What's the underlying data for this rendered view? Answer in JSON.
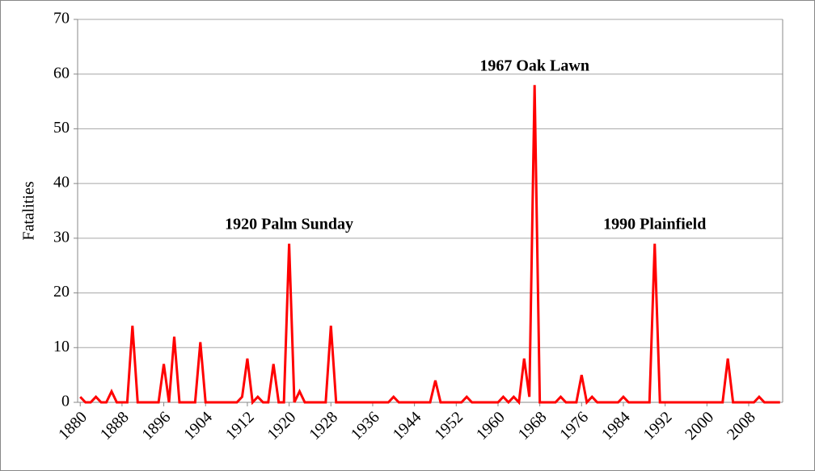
{
  "chart_data": {
    "type": "line",
    "y_label": "Fatalities",
    "x": [
      1880,
      1881,
      1882,
      1883,
      1884,
      1885,
      1886,
      1887,
      1888,
      1889,
      1890,
      1891,
      1892,
      1893,
      1894,
      1895,
      1896,
      1897,
      1898,
      1899,
      1900,
      1901,
      1902,
      1903,
      1904,
      1905,
      1906,
      1907,
      1908,
      1909,
      1910,
      1911,
      1912,
      1913,
      1914,
      1915,
      1916,
      1917,
      1918,
      1919,
      1920,
      1921,
      1922,
      1923,
      1924,
      1925,
      1926,
      1927,
      1928,
      1929,
      1930,
      1931,
      1932,
      1933,
      1934,
      1935,
      1936,
      1937,
      1938,
      1939,
      1940,
      1941,
      1942,
      1943,
      1944,
      1945,
      1946,
      1947,
      1948,
      1949,
      1950,
      1951,
      1952,
      1953,
      1954,
      1955,
      1956,
      1957,
      1958,
      1959,
      1960,
      1961,
      1962,
      1963,
      1964,
      1965,
      1966,
      1967,
      1968,
      1969,
      1970,
      1971,
      1972,
      1973,
      1974,
      1975,
      1976,
      1977,
      1978,
      1979,
      1980,
      1981,
      1982,
      1983,
      1984,
      1985,
      1986,
      1987,
      1988,
      1989,
      1990,
      1991,
      1992,
      1993,
      1994,
      1995,
      1996,
      1997,
      1998,
      1999,
      2000,
      2001,
      2002,
      2003,
      2004,
      2005,
      2006,
      2007,
      2008,
      2009,
      2010,
      2011,
      2012,
      2013,
      2014
    ],
    "series": [
      {
        "color": "#ff0000",
        "values": [
          1,
          0,
          0,
          1,
          0,
          0,
          2,
          0,
          0,
          0,
          14,
          0,
          0,
          0,
          0,
          0,
          7,
          0,
          12,
          0,
          0,
          0,
          0,
          11,
          0,
          0,
          0,
          0,
          0,
          0,
          0,
          1,
          8,
          0,
          1,
          0,
          0,
          7,
          0,
          0,
          29,
          0,
          2,
          0,
          0,
          0,
          0,
          0,
          14,
          0,
          0,
          0,
          0,
          0,
          0,
          0,
          0,
          0,
          0,
          0,
          1,
          0,
          0,
          0,
          0,
          0,
          0,
          0,
          4,
          0,
          0,
          0,
          0,
          0,
          1,
          0,
          0,
          0,
          0,
          0,
          0,
          1,
          0,
          1,
          0,
          8,
          1,
          58,
          0,
          0,
          0,
          0,
          1,
          0,
          0,
          0,
          5,
          0,
          1,
          0,
          0,
          0,
          0,
          0,
          1,
          0,
          0,
          0,
          0,
          0,
          29,
          0,
          0,
          0,
          0,
          0,
          0,
          0,
          0,
          0,
          0,
          0,
          0,
          0,
          8,
          0,
          0,
          0,
          0,
          0,
          1,
          0,
          0,
          0,
          0
        ]
      }
    ],
    "xlim": [
      1879.5,
      2014.5
    ],
    "xticks": [
      1880,
      1888,
      1896,
      1904,
      1912,
      1920,
      1928,
      1936,
      1944,
      1952,
      1960,
      1968,
      1976,
      1984,
      1992,
      2000,
      2008
    ],
    "ylim": [
      0,
      70
    ],
    "yticks": [
      0,
      10,
      20,
      30,
      40,
      50,
      60,
      70
    ],
    "grid": true,
    "annotations": [
      {
        "text": "1920 Palm Sunday",
        "x": 1920
      },
      {
        "text": "1967 Oak Lawn",
        "x": 1967
      },
      {
        "text": "1990 Plainfield",
        "x": 1990
      }
    ]
  }
}
